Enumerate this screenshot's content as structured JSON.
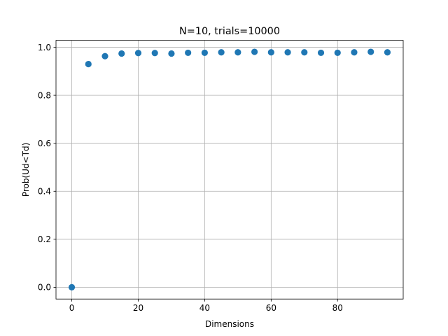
{
  "chart_data": {
    "type": "scatter",
    "title": "N=10, trials=10000",
    "xlabel": "Dimensions",
    "ylabel": "Prob(Ud<Td)",
    "xlim": [
      -4.75,
      99.75
    ],
    "ylim": [
      -0.049,
      1.029
    ],
    "xticks": [
      0,
      20,
      40,
      60,
      80
    ],
    "xtick_labels": [
      "0",
      "20",
      "40",
      "60",
      "80"
    ],
    "yticks": [
      0.0,
      0.2,
      0.4,
      0.6,
      0.8,
      1.0
    ],
    "ytick_labels": [
      "0.0",
      "0.2",
      "0.4",
      "0.6",
      "0.8",
      "1.0"
    ],
    "grid": true,
    "marker_color": "#1f77b4",
    "grid_color": "#b0b0b0",
    "x": [
      0,
      5,
      10,
      15,
      20,
      25,
      30,
      35,
      40,
      45,
      50,
      55,
      60,
      65,
      70,
      75,
      80,
      85,
      90,
      95
    ],
    "y": [
      0.0,
      0.93,
      0.963,
      0.974,
      0.976,
      0.976,
      0.974,
      0.977,
      0.977,
      0.979,
      0.979,
      0.981,
      0.979,
      0.979,
      0.979,
      0.977,
      0.977,
      0.979,
      0.981,
      0.979
    ]
  }
}
